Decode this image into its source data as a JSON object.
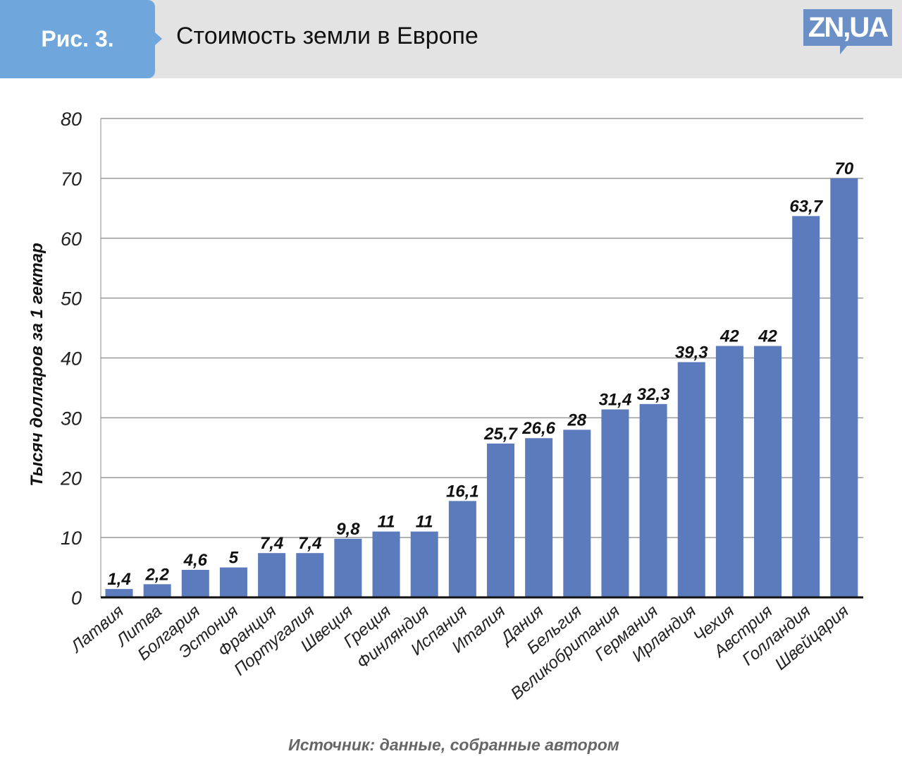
{
  "header": {
    "figure_label": "Рис. 3.",
    "title": "Стоимость земли в Европе",
    "logo": "ZN,UA"
  },
  "source": "Источник: данные, собранные автором",
  "chart_data": {
    "type": "bar",
    "title": "Стоимость земли в Европе",
    "xlabel": "",
    "ylabel": "Тысяч долларов за 1 гектар",
    "ylim": [
      0,
      80
    ],
    "yticks": [
      0,
      10,
      20,
      30,
      40,
      50,
      60,
      70,
      80
    ],
    "grid": true,
    "bar_color": "#5b7bbd",
    "categories": [
      "Латвия",
      "Литва",
      "Болгария",
      "Эстония",
      "Франция",
      "Португалия",
      "Швеция",
      "Греция",
      "Финляндия",
      "Испания",
      "Италия",
      "Дания",
      "Бельгия",
      "Великобритания",
      "Германия",
      "Ирландия",
      "Чехия",
      "Австрия",
      "Голландия",
      "Швейцария"
    ],
    "values": [
      1.4,
      2.2,
      4.6,
      5,
      7.4,
      7.4,
      9.8,
      11,
      11,
      16.1,
      25.7,
      26.6,
      28,
      31.4,
      32.3,
      39.3,
      42,
      42,
      63.7,
      70
    ],
    "value_labels": [
      "1,4",
      "2,2",
      "4,6",
      "5",
      "7,4",
      "7,4",
      "9,8",
      "11",
      "11",
      "16,1",
      "25,7",
      "26,6",
      "28",
      "31,4",
      "32,3",
      "39,3",
      "42",
      "42",
      "63,7",
      "70"
    ]
  }
}
